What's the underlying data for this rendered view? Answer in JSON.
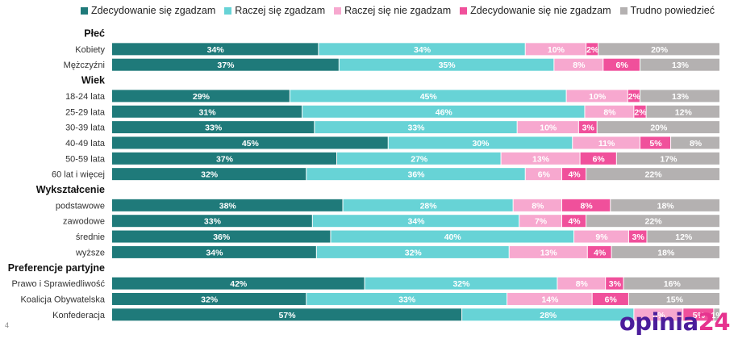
{
  "chart_data": {
    "type": "bar",
    "orientation": "horizontal",
    "stacked": true,
    "percent_stacked": true,
    "xlim": [
      0,
      100
    ],
    "grid": false,
    "legend_position": "top",
    "series": [
      {
        "name": "Zdecydowanie się zgadzam",
        "color": "#1f7a7a"
      },
      {
        "name": "Raczej się zgadzam",
        "color": "#67d3d6"
      },
      {
        "name": "Raczej się nie zgadzam",
        "color": "#f7a8cf"
      },
      {
        "name": "Zdecydowanie się nie zgadzam",
        "color": "#f0509b"
      },
      {
        "name": "Trudno powiedzieć",
        "color": "#b4b1b1"
      }
    ],
    "groups": [
      {
        "label": "Płeć",
        "rows": [
          {
            "label": "Kobiety",
            "values": [
              34,
              34,
              10,
              2,
              20
            ]
          },
          {
            "label": "Mężczyźni",
            "values": [
              37,
              35,
              8,
              6,
              13
            ]
          }
        ]
      },
      {
        "label": "Wiek",
        "rows": [
          {
            "label": "18-24 lata",
            "values": [
              29,
              45,
              10,
              2,
              13
            ]
          },
          {
            "label": "25-29 lata",
            "values": [
              31,
              46,
              8,
              2,
              12
            ]
          },
          {
            "label": "30-39 lata",
            "values": [
              33,
              33,
              10,
              3,
              20
            ]
          },
          {
            "label": "40-49 lata",
            "values": [
              45,
              30,
              11,
              5,
              8
            ]
          },
          {
            "label": "50-59 lata",
            "values": [
              37,
              27,
              13,
              6,
              17
            ]
          },
          {
            "label": "60 lat i więcej",
            "values": [
              32,
              36,
              6,
              4,
              22
            ]
          }
        ]
      },
      {
        "label": "Wykształcenie",
        "rows": [
          {
            "label": "podstawowe",
            "values": [
              38,
              28,
              8,
              8,
              18
            ]
          },
          {
            "label": "zawodowe",
            "values": [
              33,
              34,
              7,
              4,
              22
            ]
          },
          {
            "label": "średnie",
            "values": [
              36,
              40,
              9,
              3,
              12
            ]
          },
          {
            "label": "wyższe",
            "values": [
              34,
              32,
              13,
              4,
              18
            ]
          }
        ]
      },
      {
        "label": "Preferencje partyjne",
        "rows": [
          {
            "label": "Prawo i Sprawiedliwość",
            "values": [
              42,
              32,
              8,
              3,
              16
            ]
          },
          {
            "label": "Koalicja Obywatelska",
            "values": [
              32,
              33,
              14,
              6,
              15
            ]
          },
          {
            "label": "Konfederacja",
            "values": [
              57,
              28,
              8,
              5,
              1
            ]
          }
        ]
      }
    ]
  },
  "footer": {
    "page_number": "4",
    "logo_main": "opinia",
    "logo_number": "24"
  }
}
